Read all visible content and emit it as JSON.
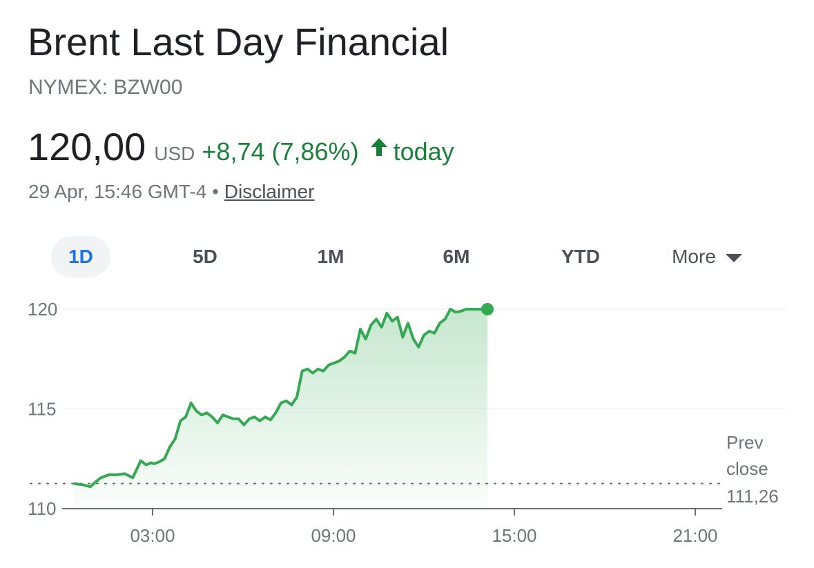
{
  "header": {
    "title": "Brent Last Day Financial",
    "exchange": "NYMEX: BZW00"
  },
  "quote": {
    "price": "120,00",
    "currency": "USD",
    "change": "+8,74 (7,86%)",
    "period": "today",
    "timestamp": "29 Apr, 15:46 GMT-4",
    "separator": "•",
    "disclaimer": "Disclaimer"
  },
  "tabs": [
    {
      "label": "1D",
      "active": true
    },
    {
      "label": "5D",
      "active": false
    },
    {
      "label": "1M",
      "active": false
    },
    {
      "label": "6M",
      "active": false
    },
    {
      "label": "YTD",
      "active": false
    },
    {
      "label": "More",
      "active": false
    }
  ],
  "colors": {
    "up": "#188038",
    "line": "#34a853",
    "grid": "#e8eaed",
    "text_muted": "#70757a"
  },
  "icons": {
    "change_arrow": "arrow-up-icon",
    "more_dropdown": "triangle-down-icon"
  },
  "chart_data": {
    "type": "line",
    "title": "",
    "xlabel": "",
    "ylabel": "",
    "x_unit": "hour of day",
    "xlim": [
      0,
      24
    ],
    "ylim": [
      110,
      120
    ],
    "y_ticks": [
      110,
      115,
      120
    ],
    "x_ticks": [
      {
        "value": 3,
        "label": "03:00"
      },
      {
        "value": 9,
        "label": "09:00"
      },
      {
        "value": 15,
        "label": "15:00"
      },
      {
        "value": 21,
        "label": "21:00"
      }
    ],
    "prev_close": {
      "value": 111.26,
      "label_line1": "Prev",
      "label_line2": "close",
      "label_value": "111,26"
    },
    "series": [
      {
        "x": [
          0.0,
          0.3,
          0.6,
          0.8,
          1.0,
          1.3,
          1.6,
          1.9,
          2.2,
          2.5,
          2.7,
          2.9,
          3.0,
          3.2,
          3.4,
          3.6,
          3.8,
          4.0,
          4.2,
          4.4,
          4.6,
          4.8,
          5.0,
          5.2,
          5.4,
          5.6,
          5.8,
          6.0,
          6.2,
          6.4,
          6.6,
          6.8,
          7.0,
          7.2,
          7.4,
          7.6,
          7.8,
          8.0,
          8.2,
          8.4,
          8.6,
          8.8,
          9.0,
          9.2,
          9.4,
          9.6,
          9.8,
          10.0,
          10.2,
          10.4,
          10.6,
          10.8,
          11.0,
          11.2,
          11.4,
          11.6,
          11.8,
          12.0,
          12.2,
          12.4,
          12.6,
          12.8,
          13.0,
          13.2,
          13.4,
          13.6,
          13.8,
          14.0,
          14.2,
          14.4,
          14.6,
          14.8,
          15.0,
          15.2,
          15.4,
          15.6
        ],
        "y": [
          111.25,
          111.2,
          111.1,
          111.35,
          111.55,
          111.7,
          111.7,
          111.75,
          111.55,
          112.4,
          112.2,
          112.3,
          112.25,
          112.35,
          112.5,
          113.1,
          113.5,
          114.4,
          114.6,
          115.3,
          114.9,
          114.7,
          114.8,
          114.6,
          114.3,
          114.7,
          114.6,
          114.5,
          114.5,
          114.2,
          114.5,
          114.6,
          114.4,
          114.6,
          114.45,
          114.8,
          115.3,
          115.4,
          115.2,
          115.6,
          116.9,
          117.0,
          116.8,
          117.0,
          116.9,
          117.2,
          117.3,
          117.4,
          117.6,
          117.9,
          117.8,
          119.0,
          118.5,
          119.2,
          119.5,
          119.1,
          119.8,
          119.4,
          119.6,
          118.6,
          119.3,
          118.5,
          118.1,
          118.7,
          118.9,
          118.8,
          119.3,
          119.5,
          120.0,
          119.85,
          119.9,
          120.0,
          120.0,
          120.0,
          120.0,
          120.0
        ]
      }
    ]
  }
}
